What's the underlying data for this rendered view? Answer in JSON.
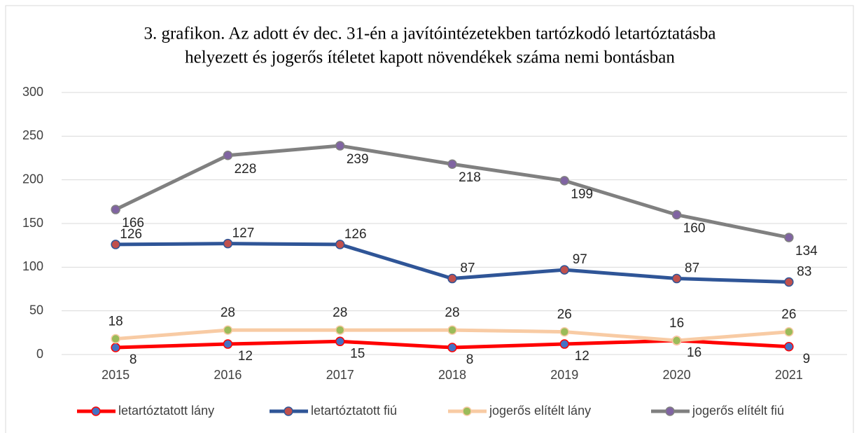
{
  "chart_data": {
    "type": "line",
    "title": [
      "3. grafikon. Az adott év dec. 31-én a javítóintézetekben tartózkodó letartóztatásba",
      "helyezett és jogerős ítéletet kapott növendékek száma nemi bontásban"
    ],
    "categories": [
      "2015",
      "2016",
      "2017",
      "2018",
      "2019",
      "2020",
      "2021"
    ],
    "series": [
      {
        "name": "letartóztatott lány",
        "color": "#ff0000",
        "marker_color": "#4472c4",
        "values": [
          8,
          12,
          15,
          8,
          12,
          16,
          9
        ]
      },
      {
        "name": "letartóztatott fiú",
        "color": "#2f5597",
        "marker_color": "#c0504d",
        "values": [
          126,
          127,
          126,
          87,
          97,
          87,
          83
        ]
      },
      {
        "name": "jogerős elítélt lány",
        "color": "#f8cba4",
        "marker_color": "#9bbb59",
        "values": [
          18,
          28,
          28,
          28,
          26,
          16,
          26
        ]
      },
      {
        "name": "jogerős elítélt fiú",
        "color": "#808080",
        "marker_color": "#8064a2",
        "values": [
          166,
          228,
          239,
          218,
          199,
          160,
          134
        ]
      }
    ],
    "ylim": [
      0,
      300
    ],
    "yticks": [
      0,
      50,
      100,
      150,
      200,
      250,
      300
    ],
    "grid": true,
    "legend": "bottom"
  }
}
